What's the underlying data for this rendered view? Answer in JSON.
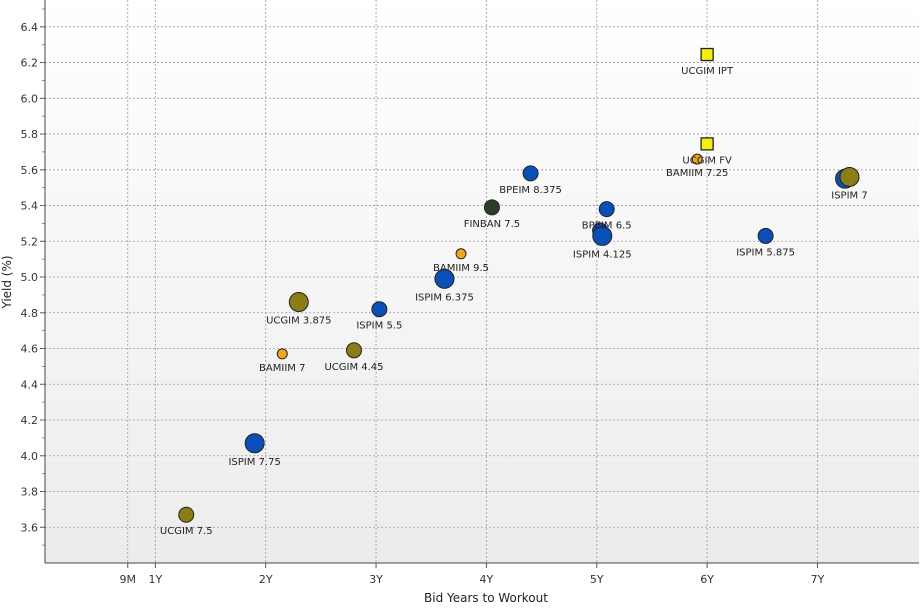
{
  "chart_data": {
    "type": "scatter",
    "title": "",
    "xlabel": "Bid Years to Workout",
    "ylabel": "Yield (%)",
    "xlim": [
      0.0,
      7.92
    ],
    "ylim": [
      3.4,
      6.55
    ],
    "x_ticks": [
      {
        "value": 0.75,
        "label": "9M"
      },
      {
        "value": 1,
        "label": "1Y"
      },
      {
        "value": 2,
        "label": "2Y"
      },
      {
        "value": 3,
        "label": "3Y"
      },
      {
        "value": 4,
        "label": "4Y"
      },
      {
        "value": 5,
        "label": "5Y"
      },
      {
        "value": 6,
        "label": "6Y"
      },
      {
        "value": 7,
        "label": "7Y"
      }
    ],
    "y_ticks": [
      "3.6",
      "3.8",
      "4.0",
      "4.2",
      "4.4",
      "4.6",
      "4.8",
      "5.0",
      "5.2",
      "5.4",
      "5.6",
      "5.8",
      "6.0",
      "6.2",
      "6.4"
    ],
    "colors": {
      "blue": "#0a4fb8",
      "olive": "#8a7d16",
      "orange": "#f0a818",
      "darkgreen": "#2d3f2a",
      "yellow": "#f4ee10",
      "stroke": "#222222"
    },
    "points": [
      {
        "label": "UCGIM 7.5",
        "x": 1.28,
        "y": 3.67,
        "color": "olive",
        "size": "medium",
        "shape": "circle",
        "label_pos": "below"
      },
      {
        "label": "ISPIM 7.75",
        "x": 1.9,
        "y": 4.07,
        "color": "blue",
        "size": "large",
        "shape": "circle",
        "label_pos": "below"
      },
      {
        "label": "BAMIIM 7",
        "x": 2.15,
        "y": 4.57,
        "color": "orange",
        "size": "small",
        "shape": "circle",
        "label_pos": "below"
      },
      {
        "label": "UCGIM 3.875",
        "x": 2.3,
        "y": 4.86,
        "color": "olive",
        "size": "large",
        "shape": "circle",
        "label_pos": "below"
      },
      {
        "label": "UCGIM 4.45",
        "x": 2.8,
        "y": 4.59,
        "color": "olive",
        "size": "medium",
        "shape": "circle",
        "label_pos": "below"
      },
      {
        "label": "ISPIM 5.5",
        "x": 3.03,
        "y": 4.82,
        "color": "blue",
        "size": "medium",
        "shape": "circle",
        "label_pos": "below"
      },
      {
        "label": "ISPIM 6.375",
        "x": 3.62,
        "y": 4.99,
        "color": "blue",
        "size": "large",
        "shape": "circle",
        "label_pos": "below"
      },
      {
        "label": "BAMIIM 9.5",
        "x": 3.77,
        "y": 5.13,
        "color": "orange",
        "size": "small",
        "shape": "circle",
        "label_pos": "below"
      },
      {
        "label": "FINBAN 7.5",
        "x": 4.05,
        "y": 5.39,
        "color": "darkgreen",
        "size": "medium",
        "shape": "circle",
        "label_pos": "below"
      },
      {
        "label": "BPEIM 8.375",
        "x": 4.4,
        "y": 5.58,
        "color": "blue",
        "size": "medium",
        "shape": "circle",
        "label_pos": "below"
      },
      {
        "label": "BPEIM 6.5",
        "x": 5.09,
        "y": 5.38,
        "color": "blue",
        "size": "medium",
        "shape": "circle",
        "label_pos": "below"
      },
      {
        "label": "",
        "x": 5.03,
        "y": 5.26,
        "color": "blue",
        "size": "medium",
        "shape": "circle",
        "label_pos": "none"
      },
      {
        "label": "ISPIM 4.125",
        "x": 5.05,
        "y": 5.23,
        "color": "blue",
        "size": "large",
        "shape": "circle",
        "label_pos": "below"
      },
      {
        "label": "UCGIM IPT",
        "x": 6.0,
        "y": 6.245,
        "color": "yellow",
        "size": "medium",
        "shape": "square",
        "label_pos": "below"
      },
      {
        "label": "UCGIM FV",
        "x": 6.0,
        "y": 5.745,
        "color": "yellow",
        "size": "medium",
        "shape": "square",
        "label_pos": "below"
      },
      {
        "label": "BAMIIM 7.25",
        "x": 5.91,
        "y": 5.66,
        "color": "orange",
        "size": "small",
        "shape": "circle",
        "label_pos": "below"
      },
      {
        "label": "ISPIM 5.875",
        "x": 6.53,
        "y": 5.23,
        "color": "blue",
        "size": "medium",
        "shape": "circle",
        "label_pos": "below"
      },
      {
        "label": "",
        "x": 7.25,
        "y": 5.55,
        "color": "blue",
        "size": "large",
        "shape": "circle",
        "label_pos": "none"
      },
      {
        "label": "ISPIM 7",
        "x": 7.29,
        "y": 5.56,
        "color": "olive",
        "size": "large",
        "shape": "circle",
        "label_pos": "below"
      }
    ],
    "grid": true,
    "legend": "none"
  }
}
